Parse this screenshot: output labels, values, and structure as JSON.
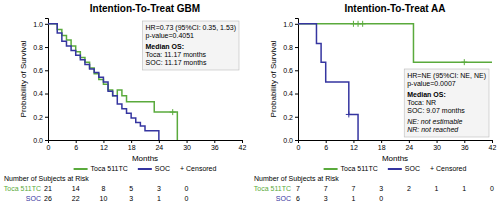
{
  "chart_data": [
    {
      "type": "line",
      "line_style": "step",
      "title": "Intention-To-Treat GBM",
      "xlabel": "Months",
      "ylabel": "Probability of Survival",
      "xlim": [
        0,
        42
      ],
      "ylim": [
        0,
        1.05
      ],
      "xticks": [
        0,
        6,
        12,
        18,
        24,
        30,
        36,
        42
      ],
      "yticks": [
        {
          "value": 0,
          "label": "0.0"
        },
        0.2,
        0.4,
        0.6,
        0.8,
        {
          "value": 1,
          "label": "1.0"
        }
      ],
      "grid": false,
      "legend": "bottom",
      "censor_label": "+ Censored",
      "annotations": [
        "HR=0.73 (95%CI: 0.35, 1.53)",
        "p-value=0.4051",
        "Median OS:",
        "Toca: 11.17 months",
        "SOC: 11.17 months"
      ],
      "at_risk_title": "Number of Subjects at Risk",
      "series": [
        {
          "name": "Toca 511TC",
          "color": "#5aaa3c",
          "x": [
            0,
            1,
            2,
            3,
            4,
            5,
            6,
            7,
            8,
            9,
            10,
            11,
            12,
            13,
            14,
            15,
            16,
            17,
            18,
            22,
            23,
            24,
            25,
            26,
            27,
            28
          ],
          "values": [
            1.0,
            1.0,
            0.95,
            0.9,
            0.86,
            0.81,
            0.76,
            0.71,
            0.67,
            0.62,
            0.57,
            0.52,
            0.48,
            0.43,
            0.38,
            0.43,
            0.38,
            0.33,
            0.33,
            0.33,
            0.24,
            0.24,
            0.24,
            0.24,
            0.24,
            0.0
          ],
          "censor_x": [
            27
          ],
          "censor_values": [
            0.24
          ],
          "at_risk_x": [
            0,
            6,
            12,
            18,
            24,
            30
          ],
          "at_risk": [
            21,
            14,
            8,
            5,
            3,
            0
          ]
        },
        {
          "name": "SOC",
          "color": "#3535a0",
          "x": [
            0,
            1,
            2,
            3,
            4,
            5,
            6,
            7,
            8,
            9,
            10,
            11,
            12,
            13,
            14,
            15,
            16,
            17,
            18,
            19,
            20,
            21,
            22,
            23,
            24
          ],
          "values": [
            1.0,
            1.0,
            0.92,
            0.85,
            0.81,
            0.77,
            0.73,
            0.69,
            0.65,
            0.61,
            0.58,
            0.54,
            0.5,
            0.42,
            0.38,
            0.31,
            0.27,
            0.23,
            0.19,
            0.15,
            0.12,
            0.08,
            0.08,
            0.08,
            0.0
          ],
          "censor_x": [],
          "censor_values": [],
          "at_risk_x": [
            0,
            6,
            12,
            18,
            24,
            30
          ],
          "at_risk": [
            26,
            22,
            10,
            3,
            1,
            0
          ]
        }
      ]
    },
    {
      "type": "line",
      "line_style": "step",
      "title": "Intention-To-Treat AA",
      "xlabel": "Months",
      "ylabel": "Probability of Survival",
      "xlim": [
        0,
        42
      ],
      "ylim": [
        0,
        1.05
      ],
      "xticks": [
        0,
        6,
        12,
        18,
        24,
        30,
        36,
        42
      ],
      "yticks": [
        {
          "value": 0,
          "label": "0.0"
        },
        0.2,
        0.4,
        0.6,
        0.8,
        {
          "value": 1,
          "label": "1.0"
        }
      ],
      "grid": false,
      "legend": "bottom",
      "censor_label": "+ Censored",
      "annotations": [
        "HR=NE (95%CI: NE, NE)",
        "p-value=0.0007",
        "Median OS:",
        "Toca: NR",
        "SOC: 9.07 months"
      ],
      "note": [
        "NE: not estimable",
        "NR: not reached"
      ],
      "at_risk_title": "Number of Subjects at Risk",
      "series": [
        {
          "name": "Toca 511TC",
          "color": "#5aaa3c",
          "x": [
            0,
            6,
            11,
            12,
            13,
            14,
            15,
            16,
            17,
            18,
            19,
            20,
            21,
            22,
            23,
            24,
            25,
            36,
            42
          ],
          "values": [
            1.0,
            1.0,
            1.0,
            1.0,
            1.0,
            1.0,
            1.0,
            1.0,
            1.0,
            1.0,
            1.0,
            1.0,
            1.0,
            1.0,
            1.0,
            1.0,
            0.67,
            0.67,
            0.67
          ],
          "censor_x": [
            12,
            13,
            14,
            36
          ],
          "censor_values": [
            1.0,
            1.0,
            1.0,
            0.67
          ],
          "at_risk_x": [
            0,
            6,
            12,
            18,
            24,
            30,
            36,
            42
          ],
          "at_risk": [
            7,
            7,
            7,
            3,
            2,
            1,
            1,
            0
          ]
        },
        {
          "name": "SOC",
          "color": "#3535a0",
          "x": [
            0,
            1,
            4,
            5,
            6,
            8,
            9,
            10,
            11,
            12,
            13
          ],
          "values": [
            1.0,
            1.0,
            0.83,
            0.67,
            0.5,
            0.5,
            0.5,
            0.5,
            0.22,
            0.22,
            0.0
          ],
          "censor_x": [
            11
          ],
          "censor_values": [
            0.22
          ],
          "at_risk_x": [
            0,
            6,
            12,
            18
          ],
          "at_risk": [
            6,
            3,
            1,
            0
          ]
        }
      ]
    }
  ]
}
